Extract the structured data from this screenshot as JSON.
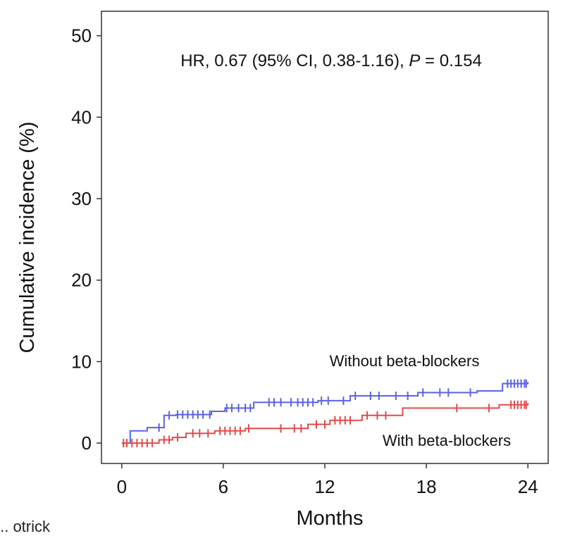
{
  "chart_data": {
    "type": "line",
    "title": "",
    "annotation": {
      "prefix": "HR, 0.67 (95% CI, 0.38-1.16), ",
      "p_symbol": "P",
      "suffix": " = 0.154"
    },
    "xlabel": "Months",
    "ylabel": "Cumulative  incidence (%)",
    "xlim": [
      -1.2,
      25.2
    ],
    "ylim": [
      -2.5,
      53
    ],
    "xticks": [
      0,
      6,
      12,
      18,
      24
    ],
    "yticks": [
      0,
      10,
      20,
      30,
      40,
      50
    ],
    "grid": false,
    "step": true,
    "series": [
      {
        "name": "Without beta-blockers",
        "color": "#5b63e6",
        "points": [
          [
            0,
            0
          ],
          [
            0.5,
            1.5
          ],
          [
            1.5,
            1.9
          ],
          [
            2.5,
            3.4
          ],
          [
            3.2,
            3.5
          ],
          [
            5.3,
            3.9
          ],
          [
            6.1,
            4.3
          ],
          [
            7.8,
            5.0
          ],
          [
            11.6,
            5.2
          ],
          [
            13.5,
            5.8
          ],
          [
            17.5,
            6.2
          ],
          [
            21.0,
            6.4
          ],
          [
            22.5,
            7.3
          ],
          [
            24,
            7.5
          ]
        ],
        "censor_times": [
          2.2,
          2.8,
          3.3,
          3.6,
          3.9,
          4.2,
          4.5,
          4.8,
          5.2,
          6.2,
          6.5,
          6.9,
          7.3,
          7.6,
          8.7,
          9.0,
          9.4,
          10.0,
          10.4,
          10.7,
          11.0,
          11.3,
          11.8,
          12.2,
          13.1,
          13.8,
          14.7,
          15.2,
          16.2,
          16.9,
          17.8,
          18.8,
          19.3,
          20.6,
          22.8,
          23.0,
          23.2,
          23.4,
          23.6,
          23.8,
          23.9
        ]
      },
      {
        "name": "With beta-blockers",
        "color": "#e24b4b",
        "points": [
          [
            0,
            0
          ],
          [
            2.2,
            0.4
          ],
          [
            3.0,
            0.7
          ],
          [
            3.8,
            1.2
          ],
          [
            5.5,
            1.5
          ],
          [
            7.3,
            1.8
          ],
          [
            11.0,
            2.3
          ],
          [
            12.3,
            2.8
          ],
          [
            14.2,
            3.4
          ],
          [
            16.6,
            4.3
          ],
          [
            22.3,
            4.7
          ],
          [
            24,
            4.9
          ]
        ],
        "censor_times": [
          0.1,
          0.3,
          0.6,
          0.9,
          1.2,
          1.5,
          1.8,
          2.5,
          2.8,
          3.3,
          4.2,
          4.6,
          5.1,
          5.8,
          6.1,
          6.4,
          6.7,
          7.0,
          7.5,
          9.4,
          10.2,
          10.6,
          11.5,
          12.0,
          12.6,
          12.9,
          13.2,
          13.5,
          14.5,
          15.1,
          15.6,
          19.8,
          21.7,
          23.0,
          23.2,
          23.4,
          23.6,
          23.8,
          23.9
        ]
      }
    ]
  },
  "footer_fragment": "... otrick"
}
